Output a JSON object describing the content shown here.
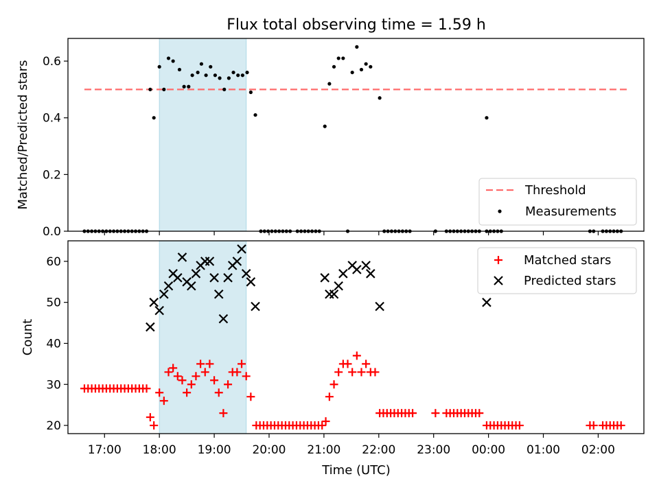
{
  "chart_data": [
    {
      "type": "scatter",
      "title": "Flux total observing time = 1.59 h",
      "xlabel": "",
      "ylabel": "Matched/Predicted stars",
      "xlim": [
        "16:20",
        "02:50"
      ],
      "ylim": [
        0,
        0.68
      ],
      "x_ticks": [
        "17:00",
        "18:00",
        "19:00",
        "20:00",
        "21:00",
        "22:00",
        "23:00",
        "00:00",
        "01:00",
        "02:00"
      ],
      "y_ticks": [
        "0.0",
        "0.2",
        "0.4",
        "0.6"
      ],
      "shaded_interval": {
        "start": "18:00",
        "end": "19:35",
        "color": "#add8e6"
      },
      "grid": false,
      "legend_position": "lower-right",
      "threshold": {
        "name": "Threshold",
        "value": 0.5,
        "x_start": "16:38",
        "x_end": "02:32",
        "color": "#ff6b6b",
        "style": "dashed"
      },
      "series": [
        {
          "name": "Measurements",
          "marker": "dot",
          "color": "#000000",
          "points": [
            [
              "16:38",
              0
            ],
            [
              "16:42",
              0
            ],
            [
              "16:46",
              0
            ],
            [
              "16:50",
              0
            ],
            [
              "16:54",
              0
            ],
            [
              "16:58",
              0
            ],
            [
              "17:02",
              0
            ],
            [
              "17:06",
              0
            ],
            [
              "17:10",
              0
            ],
            [
              "17:14",
              0
            ],
            [
              "17:18",
              0
            ],
            [
              "17:22",
              0
            ],
            [
              "17:26",
              0
            ],
            [
              "17:30",
              0
            ],
            [
              "17:34",
              0
            ],
            [
              "17:38",
              0
            ],
            [
              "17:42",
              0
            ],
            [
              "17:46",
              0
            ],
            [
              "17:50",
              0.5
            ],
            [
              "17:54",
              0.4
            ],
            [
              "18:00",
              0.58
            ],
            [
              "18:05",
              0.5
            ],
            [
              "18:10",
              0.61
            ],
            [
              "18:15",
              0.6
            ],
            [
              "18:22",
              0.57
            ],
            [
              "18:27",
              0.51
            ],
            [
              "18:32",
              0.51
            ],
            [
              "18:36",
              0.55
            ],
            [
              "18:42",
              0.56
            ],
            [
              "18:46",
              0.59
            ],
            [
              "18:51",
              0.55
            ],
            [
              "18:56",
              0.58
            ],
            [
              "19:01",
              0.55
            ],
            [
              "19:06",
              0.54
            ],
            [
              "19:11",
              0.5
            ],
            [
              "19:16",
              0.54
            ],
            [
              "19:21",
              0.56
            ],
            [
              "19:26",
              0.55
            ],
            [
              "19:31",
              0.55
            ],
            [
              "19:36",
              0.56
            ],
            [
              "19:40",
              0.49
            ],
            [
              "19:45",
              0.41
            ],
            [
              "19:51",
              0
            ],
            [
              "19:55",
              0
            ],
            [
              "19:59",
              0
            ],
            [
              "20:03",
              0
            ],
            [
              "20:07",
              0
            ],
            [
              "20:11",
              0
            ],
            [
              "20:15",
              0
            ],
            [
              "20:19",
              0
            ],
            [
              "20:23",
              0
            ],
            [
              "20:31",
              0
            ],
            [
              "20:35",
              0
            ],
            [
              "20:39",
              0
            ],
            [
              "20:43",
              0
            ],
            [
              "20:47",
              0
            ],
            [
              "20:51",
              0
            ],
            [
              "20:55",
              0
            ],
            [
              "21:01",
              0.37
            ],
            [
              "21:06",
              0.52
            ],
            [
              "21:11",
              0.58
            ],
            [
              "21:16",
              0.61
            ],
            [
              "21:21",
              0.61
            ],
            [
              "21:26",
              0
            ],
            [
              "21:31",
              0.56
            ],
            [
              "21:36",
              0.65
            ],
            [
              "21:41",
              0.57
            ],
            [
              "21:46",
              0.59
            ],
            [
              "21:51",
              0.58
            ],
            [
              "22:01",
              0.47
            ],
            [
              "22:06",
              0
            ],
            [
              "22:10",
              0
            ],
            [
              "22:14",
              0
            ],
            [
              "22:18",
              0
            ],
            [
              "22:22",
              0
            ],
            [
              "22:26",
              0
            ],
            [
              "22:30",
              0
            ],
            [
              "22:34",
              0
            ],
            [
              "23:02",
              0
            ],
            [
              "23:14",
              0
            ],
            [
              "23:18",
              0
            ],
            [
              "23:22",
              0
            ],
            [
              "23:26",
              0
            ],
            [
              "23:30",
              0
            ],
            [
              "23:34",
              0
            ],
            [
              "23:38",
              0
            ],
            [
              "23:42",
              0
            ],
            [
              "23:46",
              0
            ],
            [
              "23:50",
              0
            ],
            [
              "23:58",
              0
            ],
            [
              "00:02",
              0
            ],
            [
              "00:06",
              0
            ],
            [
              "00:10",
              0
            ],
            [
              "00:14",
              0
            ],
            [
              "01:51",
              0
            ],
            [
              "01:55",
              0
            ],
            [
              "02:05",
              0
            ],
            [
              "02:09",
              0
            ],
            [
              "02:13",
              0
            ],
            [
              "02:17",
              0
            ],
            [
              "02:21",
              0
            ],
            [
              "02:25",
              0
            ]
          ]
        },
        {
          "name": "Measurements",
          "marker": "dot",
          "color": "#000000",
          "points": [
            [
              "23:58",
              0.4
            ]
          ]
        }
      ]
    },
    {
      "type": "scatter",
      "title": "",
      "xlabel": "Time (UTC)",
      "ylabel": "Count",
      "xlim": [
        "16:20",
        "02:50"
      ],
      "ylim": [
        18,
        65
      ],
      "x_ticks": [
        "17:00",
        "18:00",
        "19:00",
        "20:00",
        "21:00",
        "22:00",
        "23:00",
        "00:00",
        "01:00",
        "02:00"
      ],
      "y_ticks": [
        "20",
        "30",
        "40",
        "50",
        "60"
      ],
      "shaded_interval": {
        "start": "18:00",
        "end": "19:35",
        "color": "#add8e6"
      },
      "grid": false,
      "legend_position": "upper-right",
      "series": [
        {
          "name": "Matched stars",
          "marker": "plus",
          "color": "#ff0000",
          "points": [
            [
              "16:38",
              29
            ],
            [
              "16:42",
              29
            ],
            [
              "16:46",
              29
            ],
            [
              "16:50",
              29
            ],
            [
              "16:54",
              29
            ],
            [
              "16:58",
              29
            ],
            [
              "17:02",
              29
            ],
            [
              "17:06",
              29
            ],
            [
              "17:10",
              29
            ],
            [
              "17:14",
              29
            ],
            [
              "17:18",
              29
            ],
            [
              "17:22",
              29
            ],
            [
              "17:26",
              29
            ],
            [
              "17:30",
              29
            ],
            [
              "17:34",
              29
            ],
            [
              "17:38",
              29
            ],
            [
              "17:42",
              29
            ],
            [
              "17:46",
              29
            ],
            [
              "17:50",
              22
            ],
            [
              "17:54",
              20
            ],
            [
              "18:00",
              28
            ],
            [
              "18:05",
              26
            ],
            [
              "18:10",
              33
            ],
            [
              "18:15",
              34
            ],
            [
              "18:20",
              32
            ],
            [
              "18:25",
              31
            ],
            [
              "18:30",
              28
            ],
            [
              "18:35",
              30
            ],
            [
              "18:40",
              32
            ],
            [
              "18:45",
              35
            ],
            [
              "18:50",
              33
            ],
            [
              "18:55",
              35
            ],
            [
              "19:00",
              31
            ],
            [
              "19:05",
              28
            ],
            [
              "19:10",
              23
            ],
            [
              "19:15",
              30
            ],
            [
              "19:20",
              33
            ],
            [
              "19:25",
              33
            ],
            [
              "19:30",
              35
            ],
            [
              "19:35",
              32
            ],
            [
              "19:40",
              27
            ],
            [
              "19:46",
              20
            ],
            [
              "19:50",
              20
            ],
            [
              "19:54",
              20
            ],
            [
              "19:58",
              20
            ],
            [
              "20:02",
              20
            ],
            [
              "20:06",
              20
            ],
            [
              "20:10",
              20
            ],
            [
              "20:14",
              20
            ],
            [
              "20:18",
              20
            ],
            [
              "20:22",
              20
            ],
            [
              "20:26",
              20
            ],
            [
              "20:30",
              20
            ],
            [
              "20:34",
              20
            ],
            [
              "20:38",
              20
            ],
            [
              "20:42",
              20
            ],
            [
              "20:46",
              20
            ],
            [
              "20:50",
              20
            ],
            [
              "20:54",
              20
            ],
            [
              "20:58",
              20
            ],
            [
              "21:02",
              21
            ],
            [
              "21:06",
              27
            ],
            [
              "21:11",
              30
            ],
            [
              "21:16",
              33
            ],
            [
              "21:21",
              35
            ],
            [
              "21:26",
              35
            ],
            [
              "21:31",
              33
            ],
            [
              "21:36",
              37
            ],
            [
              "21:41",
              33
            ],
            [
              "21:46",
              35
            ],
            [
              "21:51",
              33
            ],
            [
              "21:56",
              33
            ],
            [
              "22:01",
              23
            ],
            [
              "22:05",
              23
            ],
            [
              "22:09",
              23
            ],
            [
              "22:13",
              23
            ],
            [
              "22:17",
              23
            ],
            [
              "22:21",
              23
            ],
            [
              "22:25",
              23
            ],
            [
              "22:29",
              23
            ],
            [
              "22:33",
              23
            ],
            [
              "22:37",
              23
            ],
            [
              "23:02",
              23
            ],
            [
              "23:14",
              23
            ],
            [
              "23:18",
              23
            ],
            [
              "23:22",
              23
            ],
            [
              "23:26",
              23
            ],
            [
              "23:30",
              23
            ],
            [
              "23:34",
              23
            ],
            [
              "23:38",
              23
            ],
            [
              "23:42",
              23
            ],
            [
              "23:46",
              23
            ],
            [
              "23:50",
              23
            ],
            [
              "23:58",
              20
            ],
            [
              "00:02",
              20
            ],
            [
              "00:06",
              20
            ],
            [
              "00:10",
              20
            ],
            [
              "00:14",
              20
            ],
            [
              "00:18",
              20
            ],
            [
              "00:22",
              20
            ],
            [
              "00:26",
              20
            ],
            [
              "00:30",
              20
            ],
            [
              "00:34",
              20
            ],
            [
              "01:51",
              20
            ],
            [
              "01:55",
              20
            ],
            [
              "02:05",
              20
            ],
            [
              "02:09",
              20
            ],
            [
              "02:13",
              20
            ],
            [
              "02:17",
              20
            ],
            [
              "02:21",
              20
            ],
            [
              "02:25",
              20
            ]
          ]
        },
        {
          "name": "Predicted stars",
          "marker": "x",
          "color": "#000000",
          "points": [
            [
              "17:50",
              44
            ],
            [
              "17:54",
              50
            ],
            [
              "18:00",
              48
            ],
            [
              "18:05",
              52
            ],
            [
              "18:10",
              54
            ],
            [
              "18:15",
              57
            ],
            [
              "18:20",
              56
            ],
            [
              "18:25",
              61
            ],
            [
              "18:30",
              55
            ],
            [
              "18:35",
              54
            ],
            [
              "18:40",
              57
            ],
            [
              "18:45",
              59
            ],
            [
              "18:50",
              60
            ],
            [
              "18:55",
              60
            ],
            [
              "19:00",
              56
            ],
            [
              "19:05",
              52
            ],
            [
              "19:10",
              46
            ],
            [
              "19:15",
              56
            ],
            [
              "19:20",
              59
            ],
            [
              "19:25",
              60
            ],
            [
              "19:30",
              63
            ],
            [
              "19:35",
              57
            ],
            [
              "19:40",
              55
            ],
            [
              "19:45",
              49
            ],
            [
              "21:01",
              56
            ],
            [
              "21:06",
              52
            ],
            [
              "21:11",
              52
            ],
            [
              "21:16",
              54
            ],
            [
              "21:21",
              57
            ],
            [
              "21:31",
              59
            ],
            [
              "21:36",
              58
            ],
            [
              "21:46",
              59
            ],
            [
              "21:51",
              57
            ],
            [
              "22:01",
              49
            ],
            [
              "23:58",
              50
            ]
          ]
        }
      ]
    }
  ]
}
